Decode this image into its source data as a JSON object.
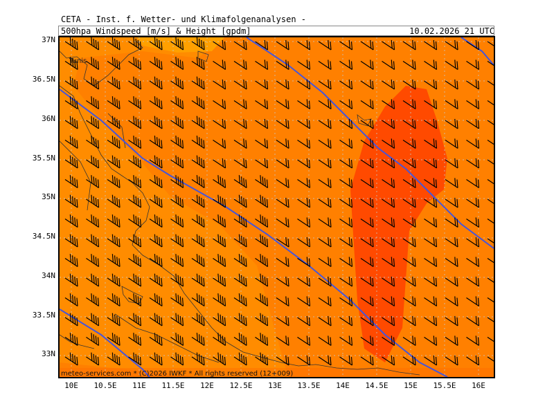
{
  "header": {
    "title": "CETA - Inst. f. Wetter- und Klimafolgenanalysen -",
    "subtitle": "500hpa Windspeed [m/s] & Height [gpdm]",
    "valid_time": "10.02.2026 21 UTC"
  },
  "lat_labels": [
    "37N",
    "36.5N",
    "36N",
    "35.5N",
    "35N",
    "34.5N",
    "34N",
    "33.5N",
    "33N"
  ],
  "lon_labels": [
    "10E",
    "10.5E",
    "11E",
    "11.5E",
    "12E",
    "12.5E",
    "13E",
    "13.5E",
    "14E",
    "14.5E",
    "15E",
    "15.5E",
    "16E"
  ],
  "city": "Tunis",
  "credit": "meteo-services.com * (C)2026 IWKF * All rights reserved (12+009)",
  "colors": {
    "band_light": "#ff8c00",
    "band_mid": "#ff6a00",
    "band_dark": "#ff4a00",
    "band_pale": "#ffa000",
    "height_contour": "#4455dd",
    "coast": "#333333",
    "grid": "#c8c8c8"
  },
  "layers": [
    "windspeed-shading",
    "wind-barbs",
    "geopotential-height-contours",
    "coastlines",
    "lat-lon-grid"
  ]
}
